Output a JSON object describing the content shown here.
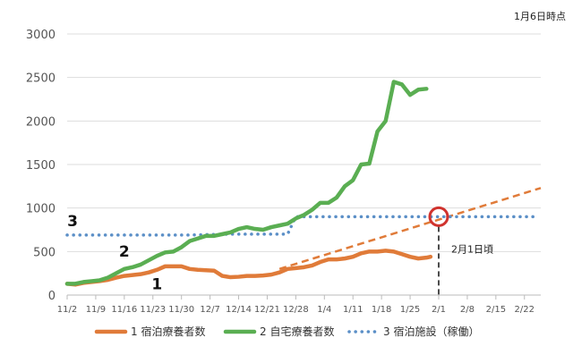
{
  "chart_data": {
    "type": "line",
    "annotation_top_right": "1月6日時点",
    "x_ticks": [
      "11/2",
      "11/9",
      "11/16",
      "11/23",
      "11/30",
      "12/7",
      "12/14",
      "12/21",
      "12/28",
      "1/4",
      "1/11",
      "1/18",
      "1/25",
      "2/1",
      "2/8",
      "2/15",
      "2/22"
    ],
    "y_ticks": [
      0,
      500,
      1000,
      1500,
      2000,
      2500,
      3000
    ],
    "ylim": [
      0,
      3000
    ],
    "x_range_days": [
      0,
      116
    ],
    "grid": "horizontal",
    "legend_position": "bottom",
    "series": [
      {
        "name": "1 宿泊療養者数",
        "marker_label": "1",
        "color": "#E07B39",
        "style": "solid",
        "points": [
          [
            0,
            130
          ],
          [
            2,
            120
          ],
          [
            4,
            140
          ],
          [
            6,
            150
          ],
          [
            8,
            160
          ],
          [
            10,
            175
          ],
          [
            12,
            200
          ],
          [
            14,
            220
          ],
          [
            16,
            230
          ],
          [
            18,
            240
          ],
          [
            20,
            260
          ],
          [
            22,
            290
          ],
          [
            24,
            330
          ],
          [
            26,
            330
          ],
          [
            28,
            330
          ],
          [
            30,
            300
          ],
          [
            32,
            290
          ],
          [
            34,
            285
          ],
          [
            36,
            280
          ],
          [
            38,
            220
          ],
          [
            40,
            205
          ],
          [
            42,
            210
          ],
          [
            44,
            220
          ],
          [
            46,
            220
          ],
          [
            48,
            225
          ],
          [
            50,
            235
          ],
          [
            52,
            260
          ],
          [
            54,
            300
          ],
          [
            56,
            310
          ],
          [
            58,
            320
          ],
          [
            60,
            340
          ],
          [
            62,
            380
          ],
          [
            64,
            410
          ],
          [
            66,
            410
          ],
          [
            68,
            420
          ],
          [
            70,
            440
          ],
          [
            72,
            480
          ],
          [
            74,
            500
          ],
          [
            76,
            500
          ],
          [
            78,
            510
          ],
          [
            80,
            500
          ],
          [
            82,
            470
          ],
          [
            84,
            440
          ],
          [
            86,
            420
          ],
          [
            88,
            430
          ],
          [
            89,
            440
          ]
        ]
      },
      {
        "name": "2 自宅療養者数",
        "marker_label": "2",
        "color": "#5AAE52",
        "style": "solid",
        "points": [
          [
            0,
            130
          ],
          [
            2,
            130
          ],
          [
            4,
            150
          ],
          [
            6,
            160
          ],
          [
            8,
            170
          ],
          [
            10,
            200
          ],
          [
            12,
            250
          ],
          [
            14,
            300
          ],
          [
            16,
            320
          ],
          [
            18,
            350
          ],
          [
            20,
            400
          ],
          [
            22,
            450
          ],
          [
            24,
            490
          ],
          [
            26,
            500
          ],
          [
            28,
            550
          ],
          [
            30,
            620
          ],
          [
            32,
            650
          ],
          [
            34,
            680
          ],
          [
            36,
            680
          ],
          [
            38,
            700
          ],
          [
            40,
            720
          ],
          [
            42,
            760
          ],
          [
            44,
            780
          ],
          [
            46,
            760
          ],
          [
            48,
            750
          ],
          [
            50,
            780
          ],
          [
            52,
            800
          ],
          [
            54,
            820
          ],
          [
            56,
            880
          ],
          [
            58,
            920
          ],
          [
            60,
            980
          ],
          [
            62,
            1060
          ],
          [
            64,
            1060
          ],
          [
            66,
            1120
          ],
          [
            68,
            1250
          ],
          [
            70,
            1320
          ],
          [
            72,
            1500
          ],
          [
            74,
            1510
          ],
          [
            76,
            1880
          ],
          [
            78,
            2000
          ],
          [
            80,
            2450
          ],
          [
            82,
            2420
          ],
          [
            84,
            2300
          ],
          [
            86,
            2360
          ],
          [
            88,
            2370
          ]
        ]
      },
      {
        "name": "3 宿泊施設（稼働）",
        "marker_label": "3",
        "color": "#5B8FC7",
        "style": "dotted",
        "points": [
          [
            0,
            690
          ],
          [
            10,
            690
          ],
          [
            20,
            690
          ],
          [
            30,
            690
          ],
          [
            40,
            700
          ],
          [
            48,
            700
          ],
          [
            54,
            700
          ],
          [
            56,
            900
          ],
          [
            60,
            900
          ],
          [
            70,
            900
          ],
          [
            80,
            900
          ],
          [
            90,
            900
          ],
          [
            100,
            900
          ],
          [
            110,
            900
          ],
          [
            115,
            900
          ]
        ]
      }
    ],
    "projection": {
      "color": "#E07B39",
      "style": "dashed",
      "points": [
        [
          52,
          300
        ],
        [
          116,
          1230
        ]
      ]
    },
    "crossing_marker": {
      "label": "2月1日頃",
      "x": 91,
      "y": 900,
      "color": "#D0332E"
    }
  }
}
